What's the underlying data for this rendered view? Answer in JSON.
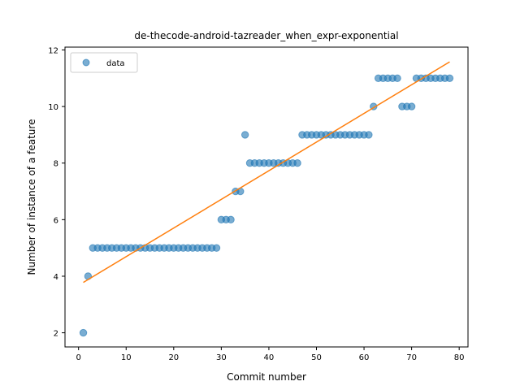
{
  "chart_data": {
    "type": "scatter",
    "title": "de-thecode-android-tazreader_when_expr-exponential",
    "xlabel": "Commit number",
    "ylabel": "Number of instance of a feature",
    "xlim": [
      -2.85,
      81.85
    ],
    "ylim": [
      1.5,
      12.1
    ],
    "xticks": [
      0,
      10,
      20,
      30,
      40,
      50,
      60,
      70,
      80
    ],
    "yticks": [
      2,
      4,
      6,
      8,
      10,
      12
    ],
    "grid": false,
    "legend_position": "top-left",
    "series": [
      {
        "name": "data",
        "kind": "scatter",
        "color": "#1f77b4",
        "x": [
          1,
          2,
          3,
          4,
          5,
          6,
          7,
          8,
          9,
          10,
          11,
          12,
          13,
          14,
          15,
          16,
          17,
          18,
          19,
          20,
          21,
          22,
          23,
          24,
          25,
          26,
          27,
          28,
          29,
          30,
          31,
          32,
          33,
          34,
          35,
          36,
          37,
          38,
          39,
          40,
          41,
          42,
          43,
          44,
          45,
          46,
          47,
          48,
          49,
          50,
          51,
          52,
          53,
          54,
          55,
          56,
          57,
          58,
          59,
          60,
          61,
          62,
          63,
          64,
          65,
          66,
          67,
          68,
          69,
          70,
          71,
          72,
          73,
          74,
          75,
          76,
          77,
          78
        ],
        "y": [
          2,
          4,
          5,
          5,
          5,
          5,
          5,
          5,
          5,
          5,
          5,
          5,
          5,
          5,
          5,
          5,
          5,
          5,
          5,
          5,
          5,
          5,
          5,
          5,
          5,
          5,
          5,
          5,
          5,
          6,
          6,
          6,
          7,
          7,
          9,
          8,
          8,
          8,
          8,
          8,
          8,
          8,
          8,
          8,
          8,
          8,
          9,
          9,
          9,
          9,
          9,
          9,
          9,
          9,
          9,
          9,
          9,
          9,
          9,
          9,
          9,
          10,
          11,
          11,
          11,
          11,
          11,
          10,
          10,
          10,
          11,
          11,
          11,
          11,
          11,
          11,
          11,
          11
        ]
      },
      {
        "kind": "line",
        "color": "#ff7f0e",
        "x": [
          1,
          78
        ],
        "y": [
          3.78,
          11.58
        ]
      }
    ]
  }
}
